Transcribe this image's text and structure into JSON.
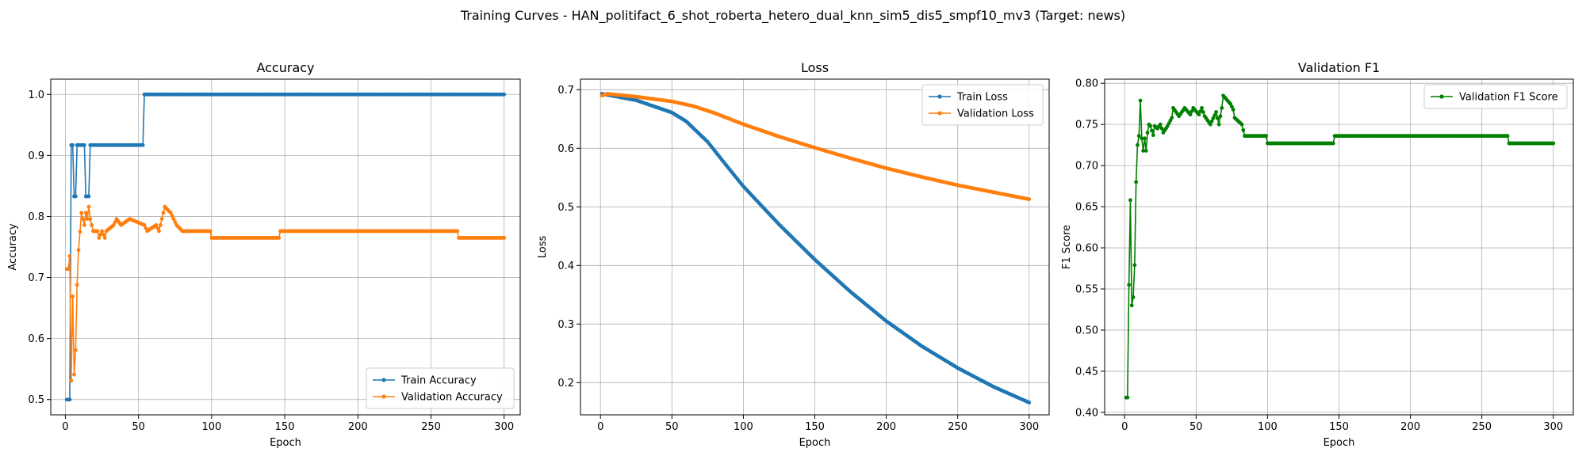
{
  "figure": {
    "suptitle": "Training Curves - HAN_politifact_6_shot_roberta_hetero_dual_knn_sim5_dis5_smpf10_mv3 (Target: news)"
  },
  "colors": {
    "blue": "#1f77b4",
    "orange": "#ff7f0e",
    "green": "#008000",
    "grid": "#b0b0b0"
  },
  "chart_data": [
    {
      "type": "line",
      "title": "Accuracy",
      "xlabel": "Epoch",
      "ylabel": "Accuracy",
      "xlim": [
        -10,
        311
      ],
      "ylim": [
        0.475,
        1.025
      ],
      "xticks": [
        0,
        50,
        100,
        150,
        200,
        250,
        300
      ],
      "yticks": [
        0.5,
        0.6,
        0.7,
        0.8,
        0.9,
        1.0
      ],
      "ytick_labels": [
        "0.5",
        "0.6",
        "0.7",
        "0.8",
        "0.9",
        "1.0"
      ],
      "grid": true,
      "legend_position": "lower-right",
      "series": [
        {
          "name": "Train Accuracy",
          "color": "#1f77b4",
          "breakpoints": [
            [
              1,
              0.5
            ],
            [
              3,
              0.5
            ],
            [
              4,
              0.917
            ],
            [
              5,
              0.917
            ],
            [
              6,
              0.833
            ],
            [
              7,
              0.833
            ],
            [
              8,
              0.917
            ],
            [
              13,
              0.917
            ],
            [
              14,
              0.833
            ],
            [
              16,
              0.833
            ],
            [
              17,
              0.917
            ],
            [
              53,
              0.917
            ],
            [
              54,
              1.0
            ],
            [
              300,
              1.0
            ]
          ]
        },
        {
          "name": "Validation Accuracy",
          "color": "#ff7f0e",
          "breakpoints": [
            [
              1,
              0.714
            ],
            [
              2,
              0.714
            ],
            [
              3,
              0.735
            ],
            [
              4,
              0.531
            ],
            [
              5,
              0.669
            ],
            [
              6,
              0.541
            ],
            [
              7,
              0.581
            ],
            [
              8,
              0.688
            ],
            [
              9,
              0.745
            ],
            [
              10,
              0.775
            ],
            [
              11,
              0.806
            ],
            [
              12,
              0.796
            ],
            [
              13,
              0.786
            ],
            [
              14,
              0.806
            ],
            [
              15,
              0.796
            ],
            [
              16,
              0.816
            ],
            [
              17,
              0.796
            ],
            [
              18,
              0.786
            ],
            [
              19,
              0.776
            ],
            [
              22,
              0.776
            ],
            [
              23,
              0.765
            ],
            [
              25,
              0.776
            ],
            [
              27,
              0.765
            ],
            [
              28,
              0.776
            ],
            [
              33,
              0.786
            ],
            [
              35,
              0.796
            ],
            [
              38,
              0.786
            ],
            [
              44,
              0.796
            ],
            [
              54,
              0.786
            ],
            [
              56,
              0.776
            ],
            [
              62,
              0.786
            ],
            [
              64,
              0.776
            ],
            [
              66,
              0.796
            ],
            [
              68,
              0.816
            ],
            [
              72,
              0.806
            ],
            [
              74,
              0.796
            ],
            [
              76,
              0.786
            ],
            [
              80,
              0.776
            ],
            [
              99,
              0.776
            ],
            [
              100,
              0.765
            ],
            [
              146,
              0.765
            ],
            [
              147,
              0.776
            ],
            [
              268,
              0.776
            ],
            [
              269,
              0.765
            ],
            [
              300,
              0.765
            ]
          ]
        }
      ]
    },
    {
      "type": "line",
      "title": "Loss",
      "xlabel": "Epoch",
      "ylabel": "Loss",
      "xlim": [
        -14,
        314
      ],
      "ylim": [
        0.145,
        0.718
      ],
      "xticks": [
        0,
        50,
        100,
        150,
        200,
        250,
        300
      ],
      "yticks": [
        0.2,
        0.3,
        0.4,
        0.5,
        0.6,
        0.7
      ],
      "ytick_labels": [
        "0.2",
        "0.3",
        "0.4",
        "0.5",
        "0.6",
        "0.7"
      ],
      "grid": true,
      "legend_position": "upper-right",
      "series": [
        {
          "name": "Train Loss",
          "color": "#1f77b4",
          "breakpoints": [
            [
              1,
              0.693
            ],
            [
              25,
              0.682
            ],
            [
              50,
              0.661
            ],
            [
              60,
              0.646
            ],
            [
              75,
              0.611
            ],
            [
              90,
              0.565
            ],
            [
              100,
              0.535
            ],
            [
              125,
              0.47
            ],
            [
              150,
              0.41
            ],
            [
              175,
              0.355
            ],
            [
              200,
              0.305
            ],
            [
              225,
              0.262
            ],
            [
              250,
              0.225
            ],
            [
              275,
              0.193
            ],
            [
              300,
              0.166
            ]
          ]
        },
        {
          "name": "Validation Loss",
          "color": "#ff7f0e",
          "breakpoints": [
            [
              1,
              0.69
            ],
            [
              5,
              0.693
            ],
            [
              25,
              0.688
            ],
            [
              50,
              0.68
            ],
            [
              65,
              0.672
            ],
            [
              80,
              0.66
            ],
            [
              100,
              0.641
            ],
            [
              125,
              0.62
            ],
            [
              150,
              0.601
            ],
            [
              175,
              0.583
            ],
            [
              200,
              0.566
            ],
            [
              225,
              0.551
            ],
            [
              250,
              0.537
            ],
            [
              275,
              0.525
            ],
            [
              300,
              0.513
            ]
          ]
        }
      ]
    },
    {
      "type": "line",
      "title": "Validation F1",
      "xlabel": "Epoch",
      "ylabel": "F1 Score",
      "xlim": [
        -14,
        314
      ],
      "ylim": [
        0.397,
        0.805
      ],
      "xticks": [
        0,
        50,
        100,
        150,
        200,
        250,
        300
      ],
      "yticks": [
        0.4,
        0.45,
        0.5,
        0.55,
        0.6,
        0.65,
        0.7,
        0.75,
        0.8
      ],
      "ytick_labels": [
        "0.40",
        "0.45",
        "0.50",
        "0.55",
        "0.60",
        "0.65",
        "0.70",
        "0.75",
        "0.80"
      ],
      "grid": true,
      "legend_position": "upper-right",
      "series": [
        {
          "name": "Validation F1 Score",
          "color": "#008000",
          "breakpoints": [
            [
              1,
              0.418
            ],
            [
              2,
              0.418
            ],
            [
              3,
              0.555
            ],
            [
              4,
              0.658
            ],
            [
              5,
              0.53
            ],
            [
              6,
              0.54
            ],
            [
              7,
              0.579
            ],
            [
              8,
              0.68
            ],
            [
              9,
              0.725
            ],
            [
              10,
              0.736
            ],
            [
              11,
              0.779
            ],
            [
              12,
              0.733
            ],
            [
              13,
              0.718
            ],
            [
              14,
              0.733
            ],
            [
              15,
              0.718
            ],
            [
              16,
              0.74
            ],
            [
              17,
              0.75
            ],
            [
              18,
              0.748
            ],
            [
              20,
              0.737
            ],
            [
              21,
              0.748
            ],
            [
              23,
              0.745
            ],
            [
              25,
              0.75
            ],
            [
              27,
              0.74
            ],
            [
              30,
              0.748
            ],
            [
              33,
              0.758
            ],
            [
              34,
              0.77
            ],
            [
              38,
              0.76
            ],
            [
              42,
              0.77
            ],
            [
              46,
              0.762
            ],
            [
              48,
              0.77
            ],
            [
              52,
              0.762
            ],
            [
              54,
              0.77
            ],
            [
              56,
              0.76
            ],
            [
              60,
              0.75
            ],
            [
              64,
              0.765
            ],
            [
              66,
              0.75
            ],
            [
              68,
              0.77
            ],
            [
              69,
              0.785
            ],
            [
              74,
              0.775
            ],
            [
              76,
              0.768
            ],
            [
              77,
              0.758
            ],
            [
              82,
              0.75
            ],
            [
              84,
              0.736
            ],
            [
              99,
              0.736
            ],
            [
              100,
              0.727
            ],
            [
              146,
              0.727
            ],
            [
              147,
              0.736
            ],
            [
              268,
              0.736
            ],
            [
              269,
              0.727
            ],
            [
              300,
              0.727
            ]
          ]
        }
      ]
    }
  ]
}
